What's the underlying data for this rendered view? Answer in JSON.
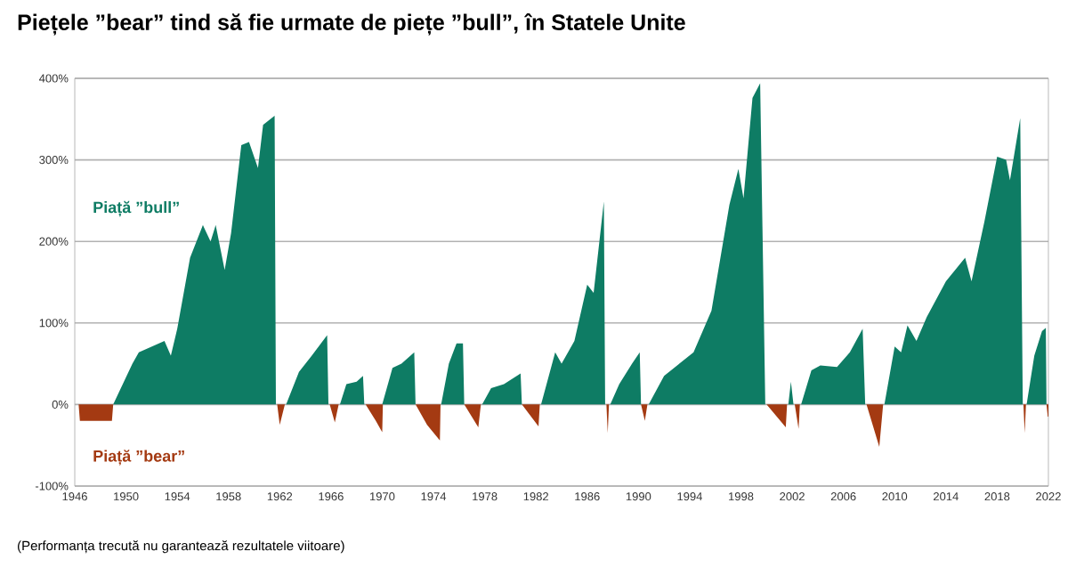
{
  "chart_data": {
    "type": "area",
    "title": "Piețele ”bear” tind să fie urmate de piețe ”bull”, în Statele Unite",
    "xlim": [
      1946,
      2022
    ],
    "xticks": [
      1946,
      1950,
      1954,
      1958,
      1962,
      1966,
      1970,
      1974,
      1978,
      1982,
      1986,
      1990,
      1994,
      1998,
      2002,
      2006,
      2010,
      2014,
      2018,
      2022
    ],
    "ylim": [
      -100,
      400
    ],
    "yticks": [
      {
        "value": -100,
        "label": "-100%"
      },
      {
        "value": 0,
        "label": "0%"
      },
      {
        "value": 100,
        "label": "100%"
      },
      {
        "value": 200,
        "label": "200%"
      },
      {
        "value": 300,
        "label": "300%"
      },
      {
        "value": 400,
        "label": "400%"
      }
    ],
    "grid": "y",
    "series": [
      {
        "name": "Piață ”bull”",
        "color": "#0e7c64",
        "x": [
          1949.0,
          1950.5,
          1951,
          1953,
          1953.5,
          1954,
          1955,
          1956,
          1956.6,
          1957,
          1957.7,
          1958.2,
          1959,
          1959.6,
          1960.3,
          1960.7,
          1961.6,
          1961.7,
          1962.5,
          1963.5,
          1964.5,
          1965.7,
          1965.8,
          1966.7,
          1967.2,
          1968,
          1968.5,
          1968.6,
          1970.0,
          1970.8,
          1971.5,
          1972.5,
          1972.6,
          1974.6,
          1975.2,
          1975.8,
          1976.3,
          1976.4,
          1977.8,
          1978.5,
          1979.5,
          1980.8,
          1980.9,
          1982.4,
          1983.5,
          1984,
          1985,
          1986,
          1986.5,
          1987.3,
          1987.4,
          1987.8,
          1988.5,
          1989.5,
          1990.1,
          1990.2,
          1990.8,
          1992,
          1994.3,
          1995.7,
          1997.1,
          1997.8,
          1998.2,
          1998.9,
          1999.5,
          1999.9,
          2001.7,
          2001.9,
          2002.1,
          2002.7,
          2003.5,
          2004.2,
          2005.5,
          2006.5,
          2007.5,
          2007.7,
          2009.2,
          2010,
          2010.5,
          2011,
          2011.7,
          2012.5,
          2014,
          2015.5,
          2016,
          2017,
          2018,
          2018.7,
          2019,
          2019.8,
          2020.0,
          2020.3,
          2020.9,
          2021.5,
          2021.8,
          2021.85
        ],
        "values": [
          0,
          50,
          64,
          78,
          60,
          93,
          180,
          220,
          200,
          220,
          165,
          210,
          318,
          322,
          290,
          343,
          354,
          0,
          0,
          40,
          60,
          85,
          0,
          0,
          25,
          28,
          35,
          0,
          0,
          45,
          50,
          64,
          0,
          0,
          50,
          75,
          75,
          0,
          0,
          20,
          25,
          38,
          0,
          0,
          64,
          50,
          78,
          147,
          137,
          249,
          0,
          0,
          25,
          50,
          64,
          0,
          0,
          35,
          64,
          115,
          245,
          289,
          253,
          376,
          394,
          0,
          0,
          28,
          0,
          0,
          42,
          48,
          46,
          64,
          93,
          0,
          0,
          71,
          64,
          97,
          78,
          107,
          151,
          180,
          151,
          224,
          304,
          300,
          275,
          351,
          0,
          0,
          60,
          90,
          94,
          0
        ]
      },
      {
        "name": "Piață ”bear”",
        "color": "#a43a12",
        "x": [
          1946.3,
          1946.4,
          1948.9,
          1949.0,
          1961.8,
          1962.0,
          1962.4,
          1965.9,
          1966.3,
          1966.6,
          1968.7,
          1969.5,
          1970.0,
          1970.05,
          1972.6,
          1973.5,
          1974.5,
          1974.55,
          1976.4,
          1977.5,
          1977.7,
          1980.9,
          1982.2,
          1982.3,
          1987.5,
          1987.6,
          1987.7,
          1990.2,
          1990.5,
          1990.7,
          2000.0,
          2001.5,
          2001.6,
          2002.2,
          2002.5,
          2002.6,
          2007.8,
          2008.8,
          2009.1,
          2020.05,
          2020.15,
          2020.25,
          2021.85,
          2021.95,
          2022
        ],
        "values": [
          0,
          -20,
          -20,
          0,
          0,
          -25,
          0,
          0,
          -22,
          0,
          0,
          -20,
          -34,
          0,
          0,
          -25,
          -44,
          0,
          0,
          -28,
          0,
          0,
          -27,
          0,
          0,
          -35,
          0,
          0,
          -20,
          0,
          0,
          -28,
          0,
          0,
          -30,
          0,
          0,
          -52,
          0,
          0,
          -35,
          0,
          0,
          -15,
          -15
        ]
      }
    ],
    "annotations": [
      "(Performanța trecută nu garantează rezultatele viitoare)"
    ]
  }
}
